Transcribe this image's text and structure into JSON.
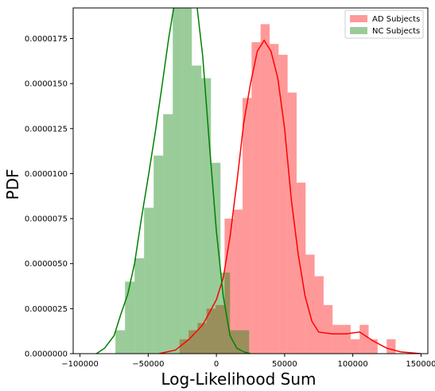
{
  "chart_data": {
    "type": "histogram",
    "xlabel": "Log-Likelihood Sum",
    "ylabel": "PDF",
    "xlim": [
      -105000,
      155000
    ],
    "ylim": [
      0,
      1.92e-05
    ],
    "x_ticks": [
      -100000,
      -50000,
      0,
      50000,
      100000,
      150000
    ],
    "x_tick_labels": [
      "−100000",
      "−50000",
      "0",
      "50000",
      "100000",
      "150000"
    ],
    "y_ticks": [
      0,
      2.5e-06,
      5e-06,
      7.5e-06,
      1e-05,
      1.25e-05,
      1.5e-05,
      1.75e-05
    ],
    "y_tick_labels": [
      "0.0000000",
      "0.0000025",
      "0.0000050",
      "0.0000075",
      "0.0000100",
      "0.0000125",
      "0.0000150",
      "0.0000175"
    ],
    "grid": false,
    "legend_position": "top-right",
    "series": [
      {
        "name": "AD Subjects",
        "color": "#ff0000",
        "fill": "#ff9999",
        "bins": [
          [
            -27000,
            -20400,
            8e-07
          ],
          [
            -20400,
            -13800,
            1.3e-06
          ],
          [
            -13800,
            -7200,
            1.7e-06
          ],
          [
            -7200,
            -600,
            2.5e-06
          ],
          [
            -600,
            6000,
            2.7e-06
          ],
          [
            6000,
            12600,
            7.5e-06
          ],
          [
            12600,
            19200,
            8e-06
          ],
          [
            19200,
            25800,
            1.42e-05
          ],
          [
            25800,
            32400,
            1.73e-05
          ],
          [
            32400,
            39000,
            1.83e-05
          ],
          [
            39000,
            45600,
            1.72e-05
          ],
          [
            45600,
            52200,
            1.66e-05
          ],
          [
            52200,
            58800,
            1.45e-05
          ],
          [
            58800,
            65400,
            9.5e-06
          ],
          [
            65400,
            72000,
            5.5e-06
          ],
          [
            72000,
            78600,
            4.3e-06
          ],
          [
            78600,
            85200,
            2.7e-06
          ],
          [
            85200,
            91800,
            1.6e-06
          ],
          [
            91800,
            98400,
            1.6e-06
          ],
          [
            98400,
            105000,
            8e-07
          ],
          [
            105000,
            111600,
            1.6e-06
          ],
          [
            111600,
            118200,
            8e-07
          ],
          [
            118200,
            124800,
            0
          ],
          [
            124800,
            131400,
            8e-07
          ]
        ],
        "kde": [
          [
            -42000,
            0
          ],
          [
            -30000,
            2e-07
          ],
          [
            -20000,
            8e-07
          ],
          [
            -10000,
            1.6e-06
          ],
          [
            0,
            3e-06
          ],
          [
            5000,
            4.2e-06
          ],
          [
            10000,
            6.5e-06
          ],
          [
            15000,
            9.5e-06
          ],
          [
            20000,
            1.28e-05
          ],
          [
            25000,
            1.5e-05
          ],
          [
            30000,
            1.68e-05
          ],
          [
            35000,
            1.74e-05
          ],
          [
            40000,
            1.68e-05
          ],
          [
            45000,
            1.53e-05
          ],
          [
            50000,
            1.25e-05
          ],
          [
            55000,
            8.5e-06
          ],
          [
            60000,
            5.5e-06
          ],
          [
            65000,
            3.2e-06
          ],
          [
            70000,
            1.8e-06
          ],
          [
            75000,
            1.2e-06
          ],
          [
            85000,
            1.1e-06
          ],
          [
            95000,
            1.1e-06
          ],
          [
            105000,
            1.2e-06
          ],
          [
            115000,
            7e-07
          ],
          [
            125000,
            3e-07
          ],
          [
            135000,
            1e-07
          ],
          [
            150000,
            0
          ]
        ]
      },
      {
        "name": "NC Subjects",
        "color": "#008000",
        "fill": "#99cc99",
        "bins": [
          [
            -74000,
            -67000,
            1.3e-06
          ],
          [
            -67000,
            -60000,
            4e-06
          ],
          [
            -60000,
            -53000,
            5.3e-06
          ],
          [
            -53000,
            -46000,
            8.1e-06
          ],
          [
            -46000,
            -39000,
            1.1e-05
          ],
          [
            -39000,
            -32000,
            1.33e-05
          ],
          [
            -32000,
            -25000,
            2.25e-05
          ],
          [
            -25000,
            -18000,
            2.15e-05
          ],
          [
            -18000,
            -11000,
            1.6e-05
          ],
          [
            -11000,
            -4000,
            1.53e-05
          ],
          [
            -4000,
            3000,
            1.06e-05
          ],
          [
            3000,
            10000,
            4.5e-06
          ],
          [
            10000,
            17000,
            1.3e-06
          ],
          [
            17000,
            24000,
            1.3e-06
          ]
        ],
        "kde": [
          [
            -88000,
            0
          ],
          [
            -82000,
            3e-07
          ],
          [
            -75000,
            1e-06
          ],
          [
            -70000,
            2.2e-06
          ],
          [
            -65000,
            3.3e-06
          ],
          [
            -60000,
            5e-06
          ],
          [
            -55000,
            7.5e-06
          ],
          [
            -50000,
            9.8e-06
          ],
          [
            -45000,
            1.22e-05
          ],
          [
            -40000,
            1.48e-05
          ],
          [
            -35000,
            1.75e-05
          ],
          [
            -30000,
            1.98e-05
          ],
          [
            -25000,
            2.15e-05
          ],
          [
            -20000,
            2.16e-05
          ],
          [
            -15000,
            1.98e-05
          ],
          [
            -10000,
            1.65e-05
          ],
          [
            -5000,
            1.15e-05
          ],
          [
            0,
            6.8e-06
          ],
          [
            5000,
            3.2e-06
          ],
          [
            10000,
            1e-06
          ],
          [
            15000,
            3e-07
          ],
          [
            20000,
            1e-07
          ],
          [
            25000,
            0
          ]
        ]
      }
    ]
  }
}
